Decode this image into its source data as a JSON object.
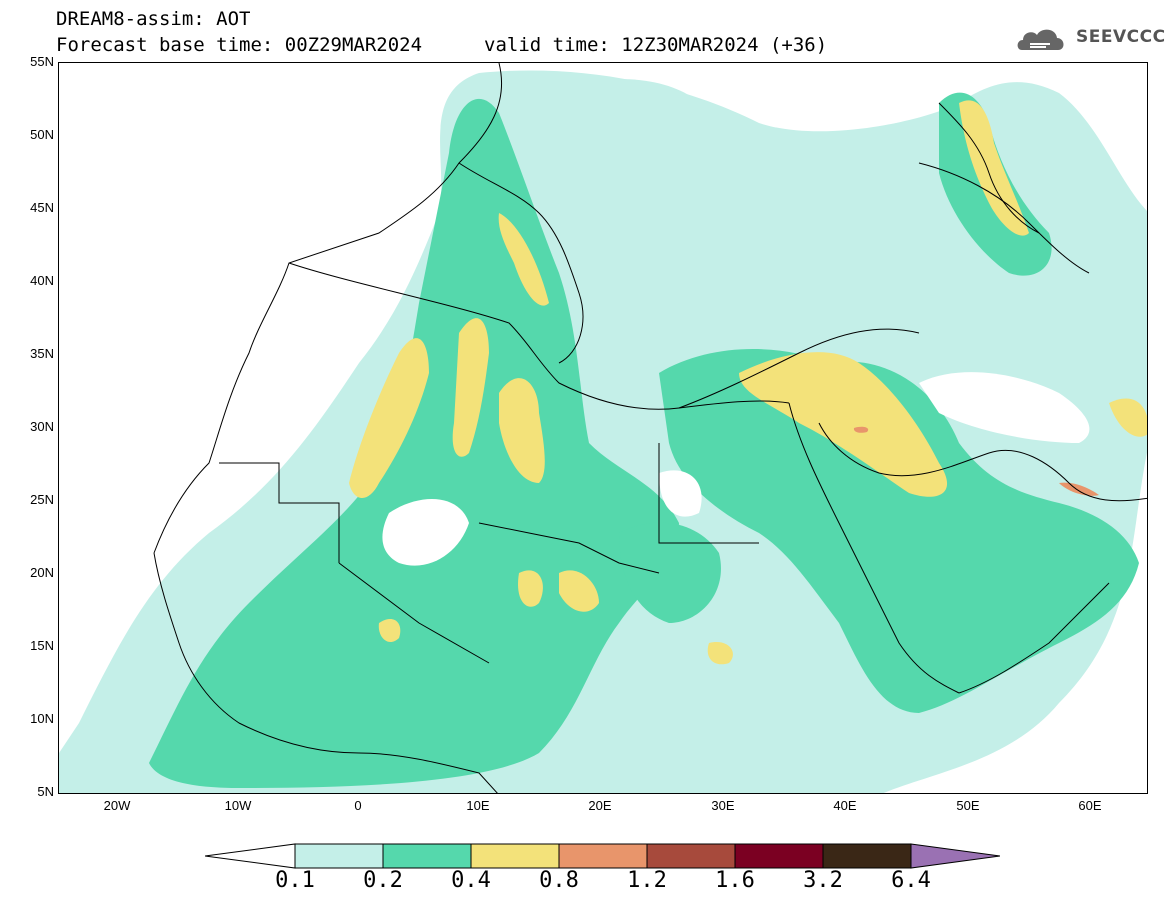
{
  "header": {
    "line1": "DREAM8-assim: AOT",
    "line2": "Forecast base time: 00Z29MAR2024",
    "valid": "valid time: 12Z30MAR2024 (+36)",
    "logo_text": "SEEVCCC",
    "logo_icon": "cloud-icon"
  },
  "axes": {
    "y_labels": [
      "55N",
      "50N",
      "45N",
      "40N",
      "35N",
      "30N",
      "25N",
      "20N",
      "15N",
      "10N",
      "5N"
    ],
    "x_labels": [
      "20W",
      "10W",
      "0",
      "10E",
      "20E",
      "30E",
      "40E",
      "50E",
      "60E"
    ]
  },
  "colorbar": {
    "labels": [
      "0.1",
      "0.2",
      "0.4",
      "0.8",
      "1.2",
      "1.6",
      "3.2",
      "6.4"
    ],
    "colors": {
      "below": "#ffffff",
      "c1": "#c4efe8",
      "c2": "#55d8ac",
      "c3": "#f3e27a",
      "c4": "#e8956b",
      "c5": "#a74a3c",
      "c6": "#7b0022",
      "c7": "#3a2716",
      "above": "#9a71b3"
    }
  },
  "colors": {
    "aot_0_1": "#c4efe8",
    "aot_0_2": "#55d8ac",
    "aot_0_4": "#f3e27a",
    "aot_0_8": "#e8956b",
    "coastline": "#000000"
  }
}
